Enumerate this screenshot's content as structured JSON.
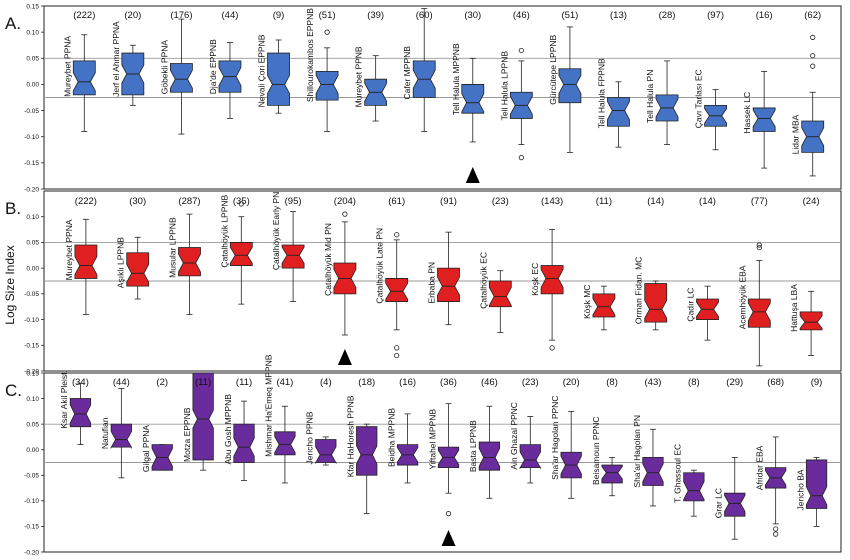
{
  "colors": {
    "A": "#4472c4",
    "B": "#e02020",
    "C": "#6a2c9c",
    "ref_line": "#999999",
    "axis": "#222222"
  },
  "y_axis_label": "Log Size Index",
  "chart_data": [
    {
      "panel": "A.",
      "type": "boxplot",
      "ylim": [
        -0.2,
        0.15
      ],
      "yticks": [
        "0.15",
        "0.10",
        "0.05",
        "0.00",
        "-0.05",
        "-0.10",
        "-0.15",
        "-0.20"
      ],
      "reference_lines": [
        0.05,
        -0.025
      ],
      "marker_after_category": "Tell Halula MPPNB",
      "categories": [
        {
          "name": "Mureybet PPNA",
          "n": "(222)",
          "q1": -0.02,
          "med": 0.005,
          "q3": 0.045,
          "lo": -0.09,
          "hi": 0.095,
          "outliers": []
        },
        {
          "name": "Jerf el Ahmar PPNA",
          "n": "(20)",
          "q1": -0.02,
          "med": 0.02,
          "q3": 0.06,
          "lo": -0.04,
          "hi": 0.075,
          "outliers": []
        },
        {
          "name": "Göbekli PPNA",
          "n": "(176)",
          "q1": -0.015,
          "med": 0.01,
          "q3": 0.04,
          "lo": -0.095,
          "hi": 0.125,
          "outliers": []
        },
        {
          "name": "Dja'de EPPNB",
          "n": "(44)",
          "q1": -0.015,
          "med": 0.015,
          "q3": 0.045,
          "lo": -0.065,
          "hi": 0.08,
          "outliers": []
        },
        {
          "name": "Nevali Çori EPPNB",
          "n": "(9)",
          "q1": -0.04,
          "med": 0.0,
          "q3": 0.06,
          "lo": -0.055,
          "hi": 0.085,
          "outliers": []
        },
        {
          "name": "Shillourokambos EPPNB",
          "n": "(51)",
          "q1": -0.03,
          "med": 0.0,
          "q3": 0.025,
          "lo": -0.09,
          "hi": 0.07,
          "outliers": [
            0.1
          ]
        },
        {
          "name": "Mureybet PPNB",
          "n": "(39)",
          "q1": -0.04,
          "med": -0.015,
          "q3": 0.01,
          "lo": -0.07,
          "hi": 0.055,
          "outliers": []
        },
        {
          "name": "Cafer MPPNB",
          "n": "(60)",
          "q1": -0.025,
          "med": 0.01,
          "q3": 0.045,
          "lo": -0.09,
          "hi": 0.145,
          "outliers": []
        },
        {
          "name": "Tell Halula MPPNB",
          "n": "(30)",
          "q1": -0.055,
          "med": -0.035,
          "q3": 0.0,
          "lo": -0.11,
          "hi": 0.05,
          "outliers": []
        },
        {
          "name": "Tell Halula LPPNB",
          "n": "(46)",
          "q1": -0.065,
          "med": -0.04,
          "q3": -0.015,
          "lo": -0.115,
          "hi": 0.045,
          "outliers": [
            0.065,
            -0.14
          ]
        },
        {
          "name": "Gürcütepe LPPNB",
          "n": "(51)",
          "q1": -0.035,
          "med": 0.0,
          "q3": 0.03,
          "lo": -0.13,
          "hi": 0.11,
          "outliers": []
        },
        {
          "name": "Tell Halula FPPNB",
          "n": "(13)",
          "q1": -0.08,
          "med": -0.05,
          "q3": -0.025,
          "lo": -0.12,
          "hi": 0.005,
          "outliers": []
        },
        {
          "name": "Tell Halula PN",
          "n": "(28)",
          "q1": -0.07,
          "med": -0.045,
          "q3": -0.02,
          "lo": -0.115,
          "hi": 0.045,
          "outliers": []
        },
        {
          "name": "Çavı Tarlası EC",
          "n": "(97)",
          "q1": -0.08,
          "med": -0.06,
          "q3": -0.04,
          "lo": -0.125,
          "hi": -0.01,
          "outliers": []
        },
        {
          "name": "Hassek LC",
          "n": "(16)",
          "q1": -0.09,
          "med": -0.065,
          "q3": -0.045,
          "lo": -0.16,
          "hi": 0.025,
          "outliers": []
        },
        {
          "name": "Lidar MBA",
          "n": "(62)",
          "q1": -0.13,
          "med": -0.1,
          "q3": -0.07,
          "lo": -0.175,
          "hi": -0.015,
          "outliers": [
            0.09,
            0.055,
            0.035
          ]
        }
      ]
    },
    {
      "panel": "B.",
      "type": "boxplot",
      "ylim": [
        -0.2,
        0.15
      ],
      "yticks": [
        "0.10",
        "0.05",
        "0.00",
        "-0.05",
        "-0.10",
        "-0.15",
        "-0.20"
      ],
      "reference_lines": [
        0.05,
        -0.025
      ],
      "marker_after_category": "Çatalhöyük Mid PN",
      "categories": [
        {
          "name": "Mureybet PPNA",
          "n": "(222)",
          "q1": -0.02,
          "med": 0.005,
          "q3": 0.045,
          "lo": -0.09,
          "hi": 0.095,
          "outliers": []
        },
        {
          "name": "Aşıklı LPPNB",
          "n": "(30)",
          "q1": -0.035,
          "med": -0.01,
          "q3": 0.03,
          "lo": -0.06,
          "hi": 0.06,
          "outliers": []
        },
        {
          "name": "Musular LPPNB",
          "n": "(287)",
          "q1": -0.015,
          "med": 0.01,
          "q3": 0.04,
          "lo": -0.09,
          "hi": 0.105,
          "outliers": []
        },
        {
          "name": "Çatalhöyük LPPNB",
          "n": "(35)",
          "q1": 0.005,
          "med": 0.025,
          "q3": 0.05,
          "lo": -0.07,
          "hi": 0.1,
          "outliers": [
            0.125
          ]
        },
        {
          "name": "Çatalhöyük Early PN",
          "n": "(95)",
          "q1": 0.0,
          "med": 0.025,
          "q3": 0.045,
          "lo": -0.065,
          "hi": 0.11,
          "outliers": []
        },
        {
          "name": "Çatalhöyük Mid PN",
          "n": "(204)",
          "q1": -0.05,
          "med": -0.02,
          "q3": 0.01,
          "lo": -0.13,
          "hi": 0.09,
          "outliers": [
            0.105
          ]
        },
        {
          "name": "Çatalhöyük Late PN",
          "n": "(61)",
          "q1": -0.065,
          "med": -0.045,
          "q3": -0.02,
          "lo": -0.12,
          "hi": 0.055,
          "outliers": [
            0.065,
            -0.155,
            -0.17
          ]
        },
        {
          "name": "Erbaba PN",
          "n": "(91)",
          "q1": -0.065,
          "med": -0.035,
          "q3": 0.0,
          "lo": -0.11,
          "hi": 0.07,
          "outliers": []
        },
        {
          "name": "Çatalhöyük EC",
          "n": "(23)",
          "q1": -0.075,
          "med": -0.055,
          "q3": -0.025,
          "lo": -0.125,
          "hi": -0.005,
          "outliers": []
        },
        {
          "name": "Köşk EC",
          "n": "(143)",
          "q1": -0.05,
          "med": -0.02,
          "q3": 0.005,
          "lo": -0.14,
          "hi": 0.075,
          "outliers": [
            -0.155
          ]
        },
        {
          "name": "Köşk MC",
          "n": "(11)",
          "q1": -0.095,
          "med": -0.075,
          "q3": -0.05,
          "lo": -0.12,
          "hi": -0.035,
          "outliers": []
        },
        {
          "name": "Orman Fidan. MC",
          "n": "(14)",
          "q1": -0.105,
          "med": -0.08,
          "q3": -0.03,
          "lo": -0.12,
          "hi": -0.025,
          "outliers": []
        },
        {
          "name": "Çadır LC",
          "n": "(14)",
          "q1": -0.1,
          "med": -0.08,
          "q3": -0.06,
          "lo": -0.14,
          "hi": -0.035,
          "outliers": []
        },
        {
          "name": "Acemhöyük EBA",
          "n": "(77)",
          "q1": -0.115,
          "med": -0.085,
          "q3": -0.06,
          "lo": -0.19,
          "hi": 0.015,
          "outliers": [
            0.04,
            0.045
          ]
        },
        {
          "name": "Hattuşa LBA",
          "n": "(24)",
          "q1": -0.12,
          "med": -0.105,
          "q3": -0.085,
          "lo": -0.17,
          "hi": -0.045,
          "outliers": []
        }
      ]
    },
    {
      "panel": "C.",
      "type": "boxplot",
      "ylim": [
        -0.2,
        0.15
      ],
      "yticks": [
        "0.15",
        "0.10",
        "0.05",
        "0.00",
        "-0.05",
        "-0.10",
        "-0.15",
        "-0.20"
      ],
      "reference_lines": [
        0.05,
        -0.025
      ],
      "marker_after_category": "Yiftahel MPPNB",
      "categories": [
        {
          "name": "Ksar Akil Pleist.",
          "n": "(34)",
          "q1": 0.045,
          "med": 0.07,
          "q3": 0.1,
          "lo": 0.01,
          "hi": 0.13,
          "outliers": []
        },
        {
          "name": "Natufian",
          "n": "(44)",
          "q1": 0.005,
          "med": 0.02,
          "q3": 0.05,
          "lo": -0.055,
          "hi": 0.12,
          "outliers": []
        },
        {
          "name": "Gilgal PPNA",
          "n": "(2)",
          "q1": -0.04,
          "med": -0.015,
          "q3": 0.01,
          "lo": -0.04,
          "hi": 0.01,
          "outliers": []
        },
        {
          "name": "Motza EPPNB",
          "n": "(11)",
          "q1": -0.02,
          "med": 0.06,
          "q3": 0.15,
          "lo": -0.04,
          "hi": 0.15,
          "outliers": []
        },
        {
          "name": "Abu Gosh MPPNB",
          "n": "(11)",
          "q1": -0.025,
          "med": 0.005,
          "q3": 0.05,
          "lo": -0.06,
          "hi": 0.095,
          "outliers": []
        },
        {
          "name": "Mishmar Ha'Emeq MPPNB",
          "n": "(41)",
          "q1": -0.01,
          "med": 0.01,
          "q3": 0.035,
          "lo": -0.065,
          "hi": 0.085,
          "outliers": []
        },
        {
          "name": "Jericho PPNB",
          "n": "(4)",
          "q1": -0.025,
          "med": -0.01,
          "q3": 0.02,
          "lo": -0.03,
          "hi": 0.025,
          "outliers": []
        },
        {
          "name": "Kfar HaHoresh PPNB",
          "n": "(18)",
          "q1": -0.05,
          "med": -0.01,
          "q3": 0.045,
          "lo": -0.125,
          "hi": 0.05,
          "outliers": []
        },
        {
          "name": "Beidha MPPNB",
          "n": "(16)",
          "q1": -0.03,
          "med": -0.01,
          "q3": 0.01,
          "lo": -0.065,
          "hi": 0.07,
          "outliers": []
        },
        {
          "name": "Yiftahel MPPNB",
          "n": "(36)",
          "q1": -0.035,
          "med": -0.015,
          "q3": 0.005,
          "lo": -0.085,
          "hi": 0.09,
          "outliers": [
            -0.125
          ]
        },
        {
          "name": "Basta LPPNB",
          "n": "(46)",
          "q1": -0.04,
          "med": -0.015,
          "q3": 0.015,
          "lo": -0.095,
          "hi": 0.085,
          "outliers": []
        },
        {
          "name": "Ain Ghazal PPNC",
          "n": "(23)",
          "q1": -0.035,
          "med": -0.02,
          "q3": 0.01,
          "lo": -0.065,
          "hi": 0.065,
          "outliers": []
        },
        {
          "name": "Sha'ar Hagolan PPNC",
          "n": "(20)",
          "q1": -0.055,
          "med": -0.03,
          "q3": -0.005,
          "lo": -0.095,
          "hi": 0.075,
          "outliers": []
        },
        {
          "name": "Beisamoun PPNC",
          "n": "(8)",
          "q1": -0.065,
          "med": -0.045,
          "q3": -0.03,
          "lo": -0.09,
          "hi": -0.015,
          "outliers": []
        },
        {
          "name": "Sha'ar Hagolan PN",
          "n": "(43)",
          "q1": -0.07,
          "med": -0.045,
          "q3": -0.015,
          "lo": -0.11,
          "hi": 0.04,
          "outliers": []
        },
        {
          "name": "T. Ghassoul EC",
          "n": "(8)",
          "q1": -0.1,
          "med": -0.08,
          "q3": -0.045,
          "lo": -0.13,
          "hi": -0.04,
          "outliers": []
        },
        {
          "name": "Grar LC",
          "n": "(29)",
          "q1": -0.13,
          "med": -0.105,
          "q3": -0.085,
          "lo": -0.175,
          "hi": -0.015,
          "outliers": []
        },
        {
          "name": "Afridar EBA",
          "n": "(68)",
          "q1": -0.075,
          "med": -0.055,
          "q3": -0.035,
          "lo": -0.145,
          "hi": 0.025,
          "outliers": [
            -0.155,
            -0.165
          ]
        },
        {
          "name": "Jericho BA",
          "n": "(9)",
          "q1": -0.115,
          "med": -0.09,
          "q3": -0.02,
          "lo": -0.15,
          "hi": -0.015,
          "outliers": []
        }
      ]
    }
  ]
}
